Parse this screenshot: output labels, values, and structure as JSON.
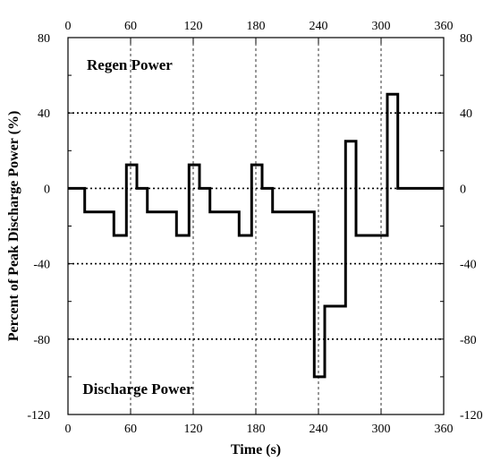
{
  "chart_data": {
    "type": "line",
    "title": "",
    "xlabel": "Time (s)",
    "ylabel": "Percent of Peak Discharge Power (%)",
    "xlim": [
      0,
      360
    ],
    "ylim": [
      -120,
      80
    ],
    "xticks": [
      0,
      60,
      120,
      180,
      240,
      300,
      360
    ],
    "yticks": [
      80,
      40,
      0,
      -40,
      -80,
      -120
    ],
    "xtick_labels": [
      "0",
      "60",
      "120",
      "180",
      "240",
      "300",
      "360"
    ],
    "ytick_labels": [
      "80",
      "40",
      "0",
      "-40",
      "-80",
      "-120"
    ],
    "grid": {
      "vertical": "dashed",
      "horizontal": "dotted",
      "horizontal_at": [
        40,
        0,
        -40,
        -80
      ]
    },
    "legend": "none",
    "annotations": [
      {
        "text": "Regen Power",
        "x": 18,
        "y": 63
      },
      {
        "text": "Discharge Power",
        "x": 14,
        "y": -109
      }
    ],
    "series": [
      {
        "step": true,
        "x": [
          0,
          16,
          16,
          44,
          44,
          56,
          56,
          66,
          66,
          76,
          76,
          104,
          104,
          116,
          116,
          126,
          126,
          136,
          136,
          164,
          164,
          176,
          176,
          186,
          186,
          196,
          196,
          236,
          236,
          246,
          246,
          266,
          266,
          276,
          276,
          306,
          306,
          316,
          316,
          360
        ],
        "y": [
          0,
          0,
          -12.5,
          -12.5,
          -25,
          -25,
          12.5,
          12.5,
          0,
          0,
          -12.5,
          -12.5,
          -25,
          -25,
          12.5,
          12.5,
          0,
          0,
          -12.5,
          -12.5,
          -25,
          -25,
          12.5,
          12.5,
          0,
          0,
          -12.5,
          -12.5,
          -100,
          -100,
          -62.5,
          -62.5,
          25,
          25,
          -25,
          -25,
          50,
          50,
          0,
          0
        ]
      }
    ],
    "colors": {
      "line": "#000000",
      "axes": "#000000",
      "grid": "#000000"
    }
  }
}
